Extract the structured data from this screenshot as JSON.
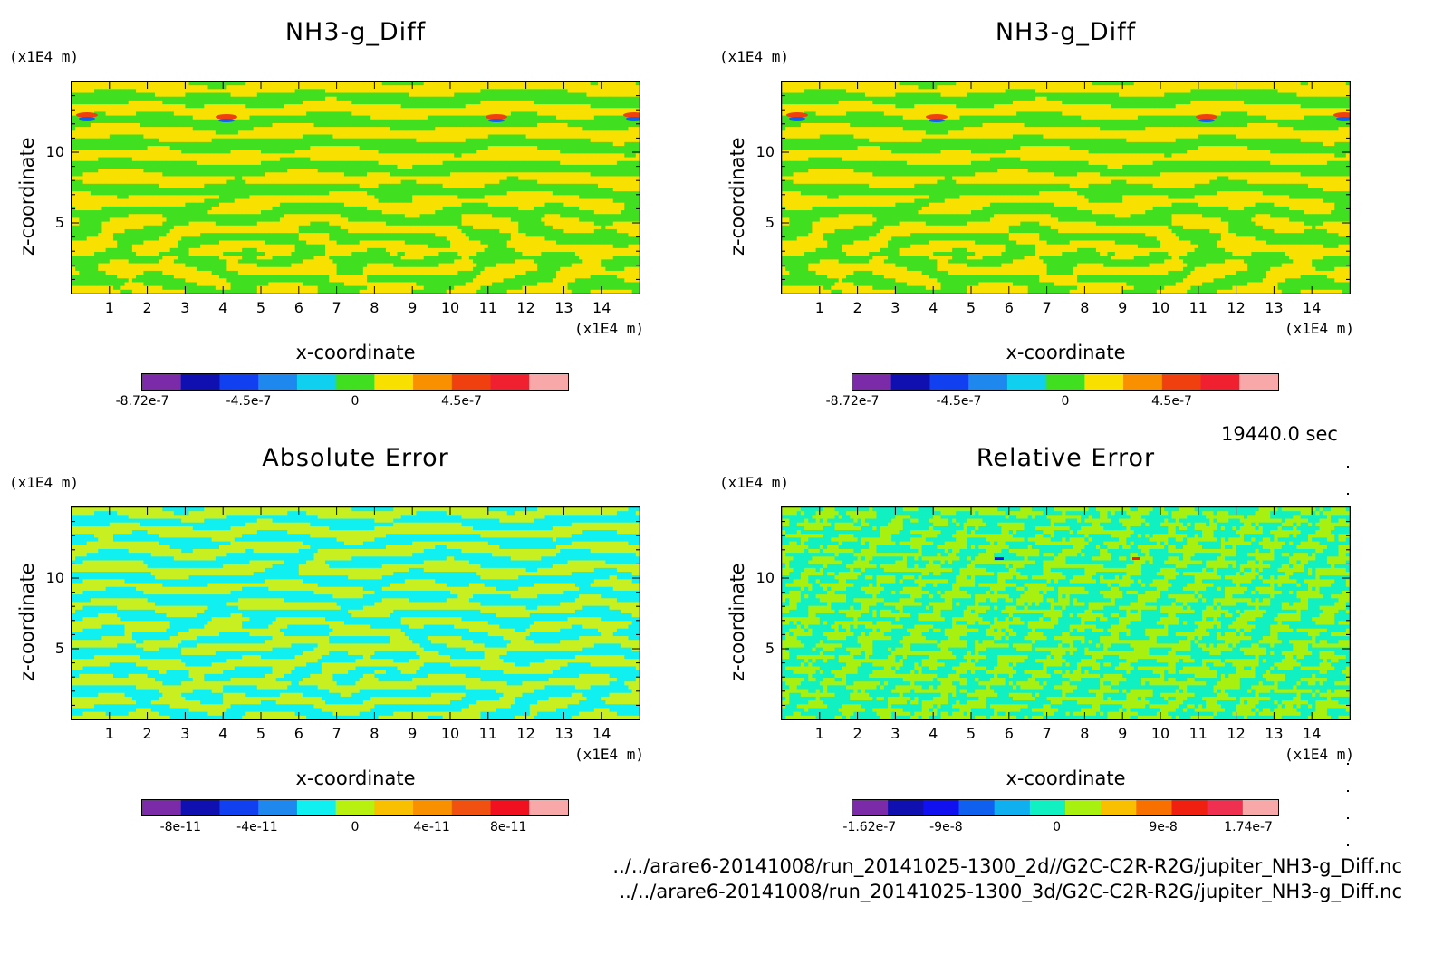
{
  "time_label": "19440.0 sec",
  "files": [
    "../../arare6-20141008/run_20141025-1300_2d//G2C-C2R-R2G/jupiter_NH3-g_Diff.nc",
    "../../arare6-20141008/run_20141025-1300_3d/G2C-C2R-R2G/jupiter_NH3-g_Diff.nc"
  ],
  "chart_data": [
    {
      "type": "heatmap",
      "title": "NH3-g_Diff",
      "xlabel": "x-coordinate",
      "ylabel": "z-coordinate",
      "x_unit": "(x1E4 m)",
      "y_unit": "(x1E4 m)",
      "xlim": [
        0,
        15
      ],
      "ylim": [
        0,
        15
      ],
      "xticks": [
        "1",
        "2",
        "3",
        "4",
        "5",
        "6",
        "7",
        "8",
        "9",
        "10",
        "11",
        "12",
        "13",
        "14"
      ],
      "yticks": [
        "5",
        "10"
      ],
      "colorbar": {
        "colors": [
          "#7b2aa8",
          "#1010b0",
          "#1040f0",
          "#1e88ee",
          "#10d0f0",
          "#40e020",
          "#f8e000",
          "#f89000",
          "#f04010",
          "#f02030",
          "#f8a8a8"
        ],
        "labels": [
          "-8.72e-7",
          "-4.5e-7",
          "0",
          "4.5e-7"
        ],
        "label_pos": [
          0,
          0.25,
          0.5,
          0.75
        ]
      },
      "field": {
        "palette": [
          "#40e020",
          "#f8e000"
        ],
        "pattern": "nh3"
      }
    },
    {
      "type": "heatmap",
      "title": "NH3-g_Diff",
      "xlabel": "x-coordinate",
      "ylabel": "z-coordinate",
      "x_unit": "(x1E4 m)",
      "y_unit": "(x1E4 m)",
      "xlim": [
        0,
        15
      ],
      "ylim": [
        0,
        15
      ],
      "xticks": [
        "1",
        "2",
        "3",
        "4",
        "5",
        "6",
        "7",
        "8",
        "9",
        "10",
        "11",
        "12",
        "13",
        "14"
      ],
      "yticks": [
        "5",
        "10"
      ],
      "colorbar": {
        "colors": [
          "#7b2aa8",
          "#1010b0",
          "#1040f0",
          "#1e88ee",
          "#10d0f0",
          "#40e020",
          "#f8e000",
          "#f89000",
          "#f04010",
          "#f02030",
          "#f8a8a8"
        ],
        "labels": [
          "-8.72e-7",
          "-4.5e-7",
          "0",
          "4.5e-7"
        ],
        "label_pos": [
          0,
          0.25,
          0.5,
          0.75
        ]
      },
      "field": {
        "palette": [
          "#40e020",
          "#f8e000"
        ],
        "pattern": "nh3"
      }
    },
    {
      "type": "heatmap",
      "title": "Absolute Error",
      "xlabel": "x-coordinate",
      "ylabel": "z-coordinate",
      "x_unit": "(x1E4 m)",
      "y_unit": "(x1E4 m)",
      "xlim": [
        0,
        15
      ],
      "ylim": [
        0,
        15
      ],
      "xticks": [
        "1",
        "2",
        "3",
        "4",
        "5",
        "6",
        "7",
        "8",
        "9",
        "10",
        "11",
        "12",
        "13",
        "14"
      ],
      "yticks": [
        "5",
        "10"
      ],
      "colorbar": {
        "colors": [
          "#7b2aa8",
          "#1010b0",
          "#1040f0",
          "#1e88ee",
          "#10f0f0",
          "#b8f010",
          "#f8c000",
          "#f89000",
          "#f05010",
          "#f01020",
          "#f8a8a8"
        ],
        "labels": [
          "-8e-11",
          "-4e-11",
          "0",
          "4e-11",
          "8e-11"
        ],
        "label_pos": [
          0.09,
          0.27,
          0.5,
          0.68,
          0.86
        ]
      },
      "field": {
        "palette": [
          "#10f0f0",
          "#c8f020"
        ],
        "pattern": "abs"
      }
    },
    {
      "type": "heatmap",
      "title": "Relative Error",
      "xlabel": "x-coordinate",
      "ylabel": "z-coordinate",
      "x_unit": "(x1E4 m)",
      "y_unit": "(x1E4 m)",
      "xlim": [
        0,
        15
      ],
      "ylim": [
        0,
        15
      ],
      "xticks": [
        "1",
        "2",
        "3",
        "4",
        "5",
        "6",
        "7",
        "8",
        "9",
        "10",
        "11",
        "12",
        "13",
        "14"
      ],
      "yticks": [
        "5",
        "10"
      ],
      "colorbar": {
        "colors": [
          "#7b2aa8",
          "#1010b0",
          "#1010f0",
          "#1060f0",
          "#10b0f0",
          "#10f0c0",
          "#a8f010",
          "#f8c000",
          "#f87000",
          "#f02010",
          "#f03050",
          "#f8a8a8"
        ],
        "labels": [
          "-1.62e-7",
          "-9e-8",
          "0",
          "9e-8",
          "1.74e-7"
        ],
        "label_pos": [
          0.04,
          0.22,
          0.48,
          0.73,
          0.93
        ]
      },
      "field": {
        "palette": [
          "#10f0c0",
          "#a8f010"
        ],
        "pattern": "rel"
      }
    }
  ]
}
